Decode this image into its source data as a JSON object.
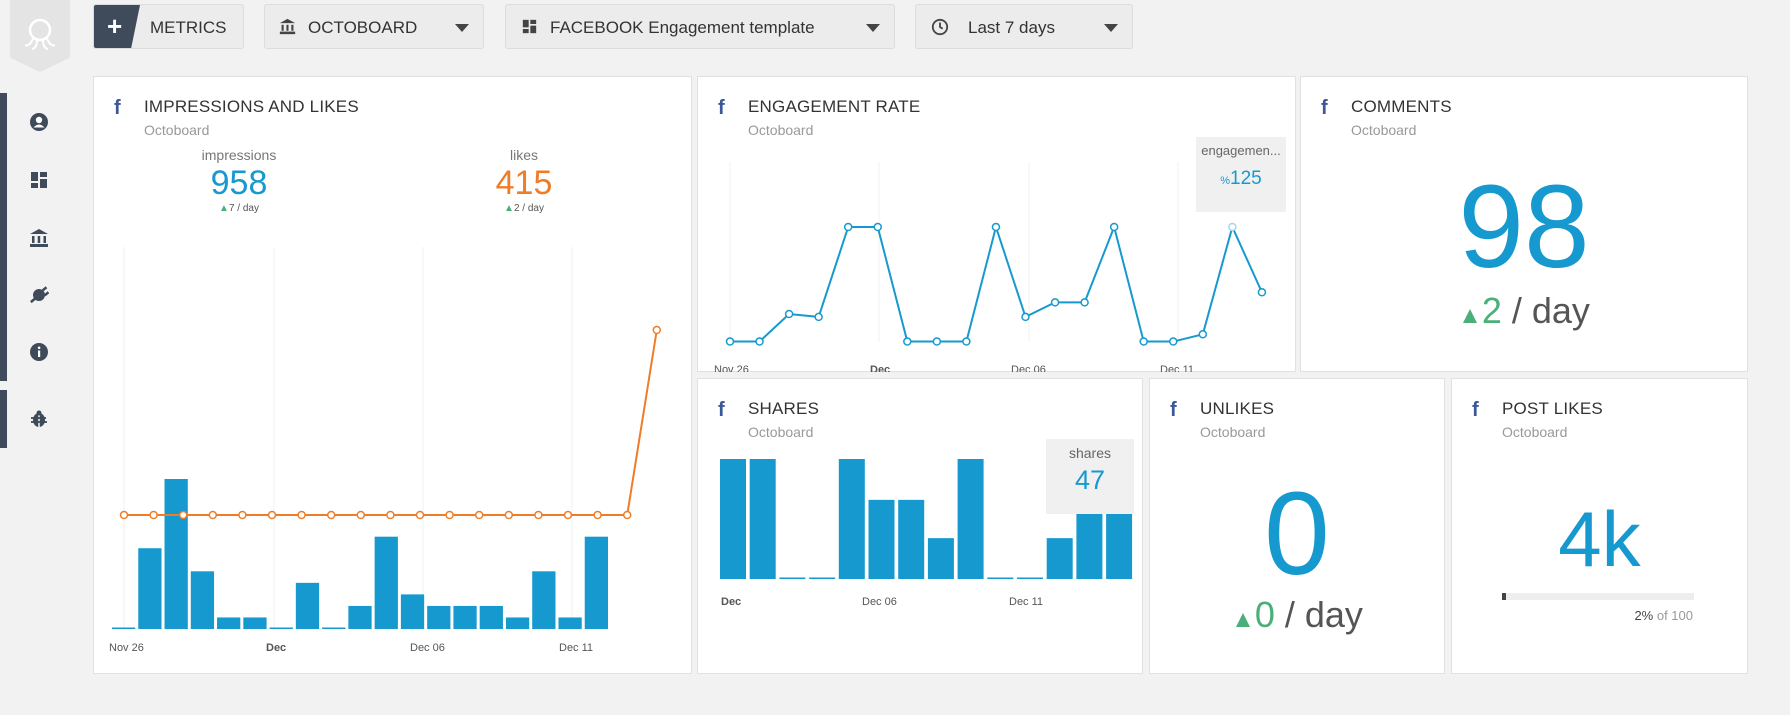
{
  "toolbar": {
    "metrics_label": "METRICS",
    "org_label": "OCTOBOARD",
    "template_label": "FACEBOOK Engagement template",
    "range_label": "Last 7 days"
  },
  "widgets": {
    "impressions": {
      "title": "IMPRESSIONS AND LIKES",
      "subtitle": "Octoboard",
      "impressions_label": "impressions",
      "impressions_value": "958",
      "impressions_delta": "7",
      "impressions_unit": " / day",
      "likes_label": "likes",
      "likes_value": "415",
      "likes_delta": "2",
      "likes_unit": " / day"
    },
    "engagement": {
      "title": "ENGAGEMENT RATE",
      "subtitle": "Octoboard",
      "tooltip_label": "engagemen...",
      "tooltip_prefix": "%",
      "tooltip_value": "125"
    },
    "comments": {
      "title": "COMMENTS",
      "subtitle": "Octoboard",
      "value": "98",
      "delta": "2",
      "unit": " / day"
    },
    "shares": {
      "title": "SHARES",
      "subtitle": "Octoboard",
      "tooltip_label": "shares",
      "tooltip_value": "47"
    },
    "unlikes": {
      "title": "UNLIKES",
      "subtitle": "Octoboard",
      "value": "0",
      "delta": "0",
      "unit": " / day"
    },
    "post_likes": {
      "title": "POST LIKES",
      "subtitle": "Octoboard",
      "value": "4k",
      "progress_pct": "2%",
      "progress_of": " of 100",
      "progress_fraction": 0.02
    }
  },
  "colors": {
    "accent_blue": "#1699cf",
    "accent_orange": "#ef7d28",
    "positive_green": "#4caf7a",
    "facebook_blue": "#3b5998",
    "sidebar_dark": "#3f4a5a"
  },
  "icons": {
    "sidebar": [
      "user-icon",
      "dashboard-icon",
      "bank-icon",
      "plug-icon",
      "info-icon",
      "bug-icon"
    ]
  },
  "chart_data": [
    {
      "type": "bar+line",
      "name_ref": "impressions-and-likes",
      "x_ticks": [
        "Nov 26",
        "Dec",
        "Dec 06",
        "Dec 11"
      ],
      "series": [
        {
          "name": "impressions",
          "type": "bar",
          "values": [
            1,
            70,
            130,
            50,
            10,
            10,
            1,
            40,
            1,
            20,
            80,
            30,
            20,
            20,
            20,
            10,
            50,
            10,
            80
          ]
        },
        {
          "name": "likes",
          "type": "line",
          "values": [
            413,
            413,
            413,
            413,
            413,
            413,
            413,
            413,
            413,
            413,
            413,
            413,
            413,
            413,
            413,
            413,
            413,
            413,
            415
          ]
        }
      ]
    },
    {
      "type": "line",
      "name_ref": "engagement-rate",
      "x_ticks": [
        "Nov 26",
        "Dec",
        "Dec 06",
        "Dec 11"
      ],
      "series": [
        {
          "name": "engagement",
          "values": [
            1,
            1,
            20,
            18,
            80,
            80,
            1,
            1,
            1,
            80,
            18,
            28,
            28,
            80,
            1,
            1,
            6,
            80,
            35
          ]
        }
      ]
    },
    {
      "type": "bar",
      "name_ref": "shares",
      "x_ticks": [
        "Dec",
        "Dec 06",
        "Dec 11"
      ],
      "series": [
        {
          "name": "shares",
          "values": [
            47,
            47,
            0,
            0,
            47,
            31,
            31,
            16,
            47,
            0,
            0,
            16,
            47,
            47
          ]
        }
      ],
      "highlighted_index_range": [
        12,
        13
      ]
    }
  ]
}
